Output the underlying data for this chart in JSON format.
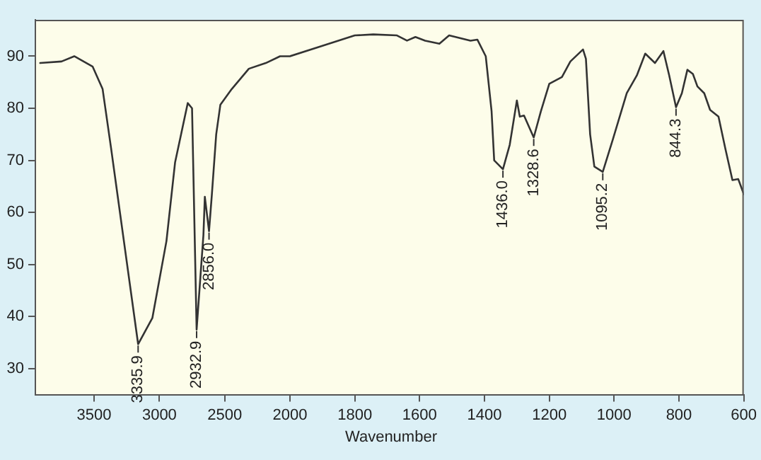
{
  "chart_data": [
    {
      "type": "line",
      "xlim": [
        3950,
        2000
      ],
      "xticks": [
        3500,
        3000,
        2500
      ],
      "ylim": [
        25,
        97
      ],
      "yticks": [
        30,
        40,
        50,
        60,
        70,
        80,
        90
      ],
      "grid": false,
      "legend": false,
      "marker": "none",
      "line_style": "solid",
      "series": [
        {
          "color": "#333333",
          "x": [
            3913,
            3750,
            3652,
            3511,
            3435,
            3370,
            3272,
            3163,
            3054,
            2946,
            2880,
            2783,
            2750,
            2715,
            2663,
            2652,
            2620,
            2598,
            2565,
            2533,
            2446,
            2315,
            2185,
            2076,
            2011,
            2000
          ],
          "values": [
            88.7,
            89,
            90,
            88,
            83.7,
            72.3,
            54.5,
            34.7,
            39.7,
            54.5,
            69.6,
            81,
            80,
            37.5,
            55.6,
            63,
            56.4,
            63.5,
            75,
            80.7,
            83.7,
            87.6,
            88.7,
            90,
            90,
            90
          ]
        }
      ],
      "annotations": [
        {
          "text": "3335.9",
          "x": 3163,
          "y": 34.7
        },
        {
          "text": "2932.9",
          "x": 2715,
          "y": 37.5
        },
        {
          "text": "2856.0",
          "x": 2620,
          "y": 56.4
        }
      ]
    },
    {
      "type": "line",
      "xlabel": "Wavenumber",
      "xlim": [
        2000,
        600
      ],
      "xticks": [
        2000,
        1800,
        1600,
        1400,
        1200,
        1000,
        800,
        600
      ],
      "ylim": [
        25,
        97
      ],
      "tick_labels": "x",
      "grid": false,
      "legend": false,
      "marker": "none",
      "line_style": "solid",
      "series": [
        {
          "color": "#333333",
          "x": [
            2000,
            1900,
            1800,
            1743,
            1670,
            1639,
            1613,
            1583,
            1539,
            1509,
            1443,
            1422,
            1396,
            1378,
            1370,
            1343,
            1322,
            1300,
            1291,
            1278,
            1248,
            1226,
            1200,
            1161,
            1135,
            1096,
            1087,
            1074,
            1061,
            1035,
            1004,
            961,
            930,
            904,
            874,
            848,
            830,
            809,
            791,
            774,
            757,
            743,
            722,
            704,
            678,
            657,
            635,
            617,
            600
          ],
          "values": [
            90,
            92,
            94,
            94.2,
            94,
            93,
            93.7,
            93,
            92.4,
            94,
            93,
            93.2,
            90,
            79.4,
            70,
            68.3,
            73,
            81.5,
            78.4,
            78.6,
            74.4,
            79.4,
            84.7,
            86,
            89,
            91.3,
            89.5,
            75,
            68.8,
            67.8,
            74,
            82.9,
            86.3,
            90.5,
            88.7,
            91,
            86.3,
            80.2,
            82.9,
            87.4,
            86.6,
            84.2,
            82.9,
            79.7,
            78.4,
            72.3,
            66.2,
            66.4,
            63.5
          ]
        }
      ],
      "annotations": [
        {
          "text": "1436.0",
          "x": 1343,
          "y": 68.3
        },
        {
          "text": "1328.6",
          "x": 1248,
          "y": 74.4
        },
        {
          "text": "1095.2",
          "x": 1035,
          "y": 67.8
        },
        {
          "text": "844.3",
          "x": 809,
          "y": 80.2
        }
      ]
    }
  ]
}
